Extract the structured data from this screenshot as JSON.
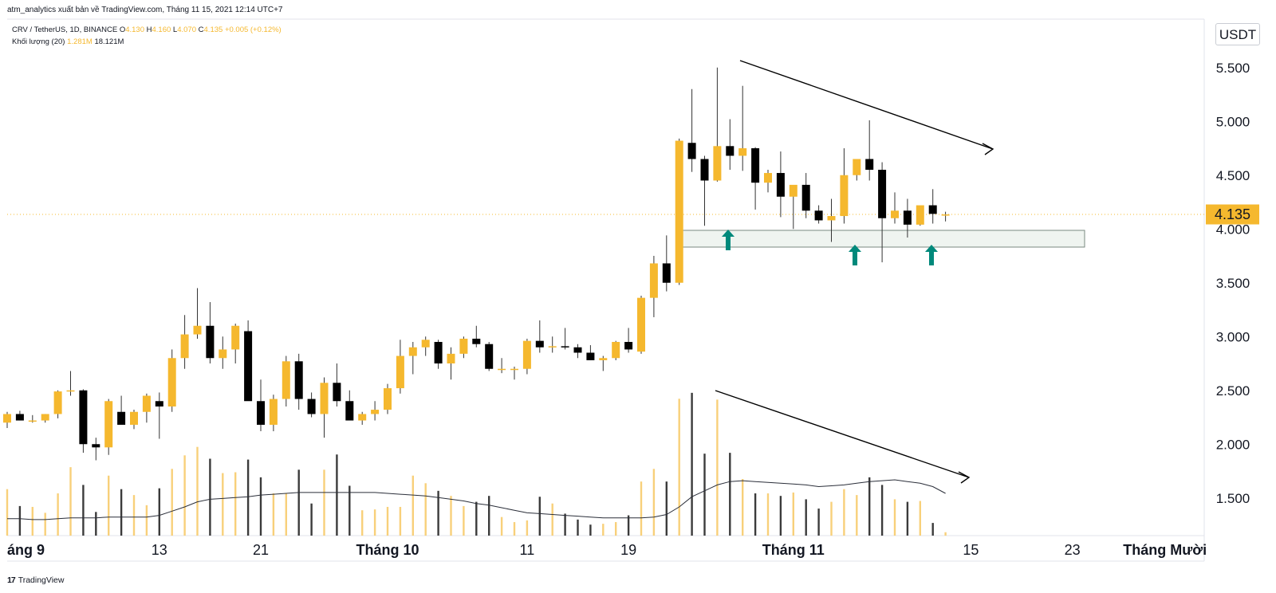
{
  "header": {
    "publisher": "atm_analytics xuất bản về TradingView.com, Tháng 11 15, 2021 12:14 UTC+7"
  },
  "legend": {
    "symbol": "CRV / TetherUS, 1D, BINANCE",
    "o_label": "O",
    "o_value": "4.130",
    "h_label": "H",
    "h_value": "4.160",
    "l_label": "L",
    "l_value": "4.070",
    "c_label": "C",
    "c_value": "4.135",
    "change": "+0.005 (+0.12%)",
    "volume_label": "Khối lượng (20)",
    "volume_value": "1.281M",
    "volume_ma": "18.121M"
  },
  "currency": "USDT",
  "footer": {
    "logo": "17",
    "brand": "TradingView"
  },
  "colors": {
    "up": "#f5b82e",
    "down": "#000000",
    "volume_up": "#f8d07a",
    "volume_down": "#3b3b3b",
    "signal": "#00897b",
    "price_line": "#f5b82e"
  },
  "chart_data": {
    "type": "candlestick",
    "title": "CRV / TetherUS, 1D, BINANCE",
    "last_price": "4.135",
    "last_price_value": 4.135,
    "ylim": [
      1.15,
      5.95
    ],
    "y_ticks": [
      {
        "value": 5.5,
        "label": "5.500"
      },
      {
        "value": 5.0,
        "label": "5.000"
      },
      {
        "value": 4.5,
        "label": "4.500"
      },
      {
        "value": 4.0,
        "label": "4.000"
      },
      {
        "value": 3.5,
        "label": "3.500"
      },
      {
        "value": 3.0,
        "label": "3.000"
      },
      {
        "value": 2.5,
        "label": "2.500"
      },
      {
        "value": 2.0,
        "label": "2.000"
      },
      {
        "value": 1.5,
        "label": "1.500"
      }
    ],
    "x_ticks": [
      {
        "index": -0.4,
        "label": "áng 9",
        "bold": true
      },
      {
        "index": 12,
        "label": "13",
        "bold": false
      },
      {
        "index": 20,
        "label": "21",
        "bold": false
      },
      {
        "index": 30,
        "label": "Tháng 10",
        "bold": true
      },
      {
        "index": 41,
        "label": "11",
        "bold": false
      },
      {
        "index": 49,
        "label": "19",
        "bold": false
      },
      {
        "index": 62,
        "label": "Tháng 11",
        "bold": true
      },
      {
        "index": 76,
        "label": "15",
        "bold": false
      },
      {
        "index": 84,
        "label": "23",
        "bold": false
      },
      {
        "index": 91.3,
        "label": "Tháng Mười",
        "bold": true
      }
    ],
    "candles": [
      [
        2.2,
        2.15,
        2.3,
        2.28
      ],
      [
        2.28,
        2.22,
        2.31,
        2.22
      ],
      [
        2.22,
        2.2,
        2.27,
        2.22
      ],
      [
        2.22,
        2.2,
        2.28,
        2.28
      ],
      [
        2.28,
        2.24,
        2.5,
        2.49
      ],
      [
        2.49,
        2.45,
        2.68,
        2.5
      ],
      [
        2.5,
        1.92,
        2.51,
        2.0
      ],
      [
        2.0,
        1.85,
        2.06,
        1.97
      ],
      [
        1.97,
        1.9,
        2.42,
        2.4
      ],
      [
        2.3,
        2.2,
        2.45,
        2.18
      ],
      [
        2.18,
        2.14,
        2.32,
        2.3
      ],
      [
        2.3,
        2.2,
        2.47,
        2.45
      ],
      [
        2.4,
        2.05,
        2.48,
        2.35
      ],
      [
        2.35,
        2.3,
        2.88,
        2.8
      ],
      [
        2.8,
        2.7,
        3.2,
        3.02
      ],
      [
        3.02,
        2.98,
        3.45,
        3.1
      ],
      [
        3.1,
        2.75,
        3.32,
        2.8
      ],
      [
        2.8,
        2.7,
        3.0,
        2.88
      ],
      [
        2.88,
        2.75,
        3.12,
        3.1
      ],
      [
        3.05,
        2.9,
        3.15,
        2.4
      ],
      [
        2.4,
        2.12,
        2.6,
        2.18
      ],
      [
        2.18,
        2.12,
        2.46,
        2.42
      ],
      [
        2.42,
        2.35,
        2.82,
        2.77
      ],
      [
        2.77,
        2.32,
        2.84,
        2.42
      ],
      [
        2.42,
        2.25,
        2.48,
        2.28
      ],
      [
        2.28,
        2.06,
        2.62,
        2.57
      ],
      [
        2.57,
        2.35,
        2.75,
        2.4
      ],
      [
        2.4,
        2.3,
        2.5,
        2.22
      ],
      [
        2.22,
        2.18,
        2.3,
        2.28
      ],
      [
        2.28,
        2.22,
        2.4,
        2.32
      ],
      [
        2.32,
        2.28,
        2.56,
        2.52
      ],
      [
        2.52,
        2.47,
        2.97,
        2.82
      ],
      [
        2.82,
        2.65,
        2.95,
        2.9
      ],
      [
        2.9,
        2.82,
        3.0,
        2.97
      ],
      [
        2.95,
        2.7,
        2.97,
        2.75
      ],
      [
        2.75,
        2.6,
        2.9,
        2.84
      ],
      [
        2.84,
        2.8,
        3.0,
        2.98
      ],
      [
        2.98,
        2.9,
        3.1,
        2.93
      ],
      [
        2.93,
        2.68,
        2.95,
        2.7
      ],
      [
        2.7,
        2.66,
        2.8,
        2.7
      ],
      [
        2.7,
        2.6,
        2.72,
        2.7
      ],
      [
        2.7,
        2.65,
        2.98,
        2.96
      ],
      [
        2.96,
        2.85,
        3.15,
        2.9
      ],
      [
        2.9,
        2.85,
        3.0,
        2.91
      ],
      [
        2.91,
        2.88,
        3.08,
        2.9
      ],
      [
        2.9,
        2.8,
        2.93,
        2.85
      ],
      [
        2.85,
        2.78,
        2.92,
        2.78
      ],
      [
        2.78,
        2.68,
        2.82,
        2.8
      ],
      [
        2.8,
        2.78,
        2.96,
        2.95
      ],
      [
        2.95,
        2.85,
        3.08,
        2.88
      ],
      [
        2.86,
        2.84,
        3.38,
        3.36
      ],
      [
        3.36,
        3.18,
        3.75,
        3.68
      ],
      [
        3.68,
        3.42,
        3.94,
        3.5
      ],
      [
        3.5,
        3.48,
        4.84,
        4.82
      ],
      [
        4.8,
        4.53,
        5.3,
        4.65
      ],
      [
        4.65,
        4.03,
        4.68,
        4.45
      ],
      [
        4.45,
        4.44,
        5.5,
        4.77
      ],
      [
        4.77,
        4.55,
        5.02,
        4.68
      ],
      [
        4.68,
        4.54,
        5.33,
        4.75
      ],
      [
        4.75,
        4.18,
        4.76,
        4.43
      ],
      [
        4.43,
        4.34,
        4.55,
        4.52
      ],
      [
        4.52,
        4.11,
        4.72,
        4.3
      ],
      [
        4.3,
        4.0,
        4.4,
        4.41
      ],
      [
        4.41,
        4.1,
        4.52,
        4.17
      ],
      [
        4.17,
        4.05,
        4.22,
        4.08
      ],
      [
        4.08,
        3.88,
        4.28,
        4.12
      ],
      [
        4.12,
        4.05,
        4.75,
        4.5
      ],
      [
        4.5,
        4.45,
        4.65,
        4.65
      ],
      [
        4.65,
        4.45,
        5.01,
        4.55
      ],
      [
        4.55,
        3.69,
        4.62,
        4.1
      ],
      [
        4.1,
        4.05,
        4.34,
        4.17
      ],
      [
        4.17,
        3.92,
        4.28,
        4.04
      ],
      [
        4.04,
        4.03,
        4.21,
        4.22
      ],
      [
        4.22,
        4.05,
        4.37,
        4.14
      ],
      [
        4.13,
        4.07,
        4.16,
        4.135
      ]
    ],
    "volume": [
      55,
      35,
      34,
      27,
      50,
      81,
      60,
      28,
      71,
      55,
      48,
      36,
      56,
      79,
      95,
      105,
      91,
      74,
      75,
      90,
      69,
      50,
      50,
      78,
      38,
      78,
      96,
      59,
      30,
      31,
      34,
      34,
      71,
      62,
      53,
      47,
      35,
      40,
      47,
      22,
      16,
      18,
      46,
      38,
      26,
      19,
      13,
      14,
      16,
      24,
      64,
      79,
      64,
      162,
      169,
      97,
      161,
      98,
      67,
      50,
      50,
      47,
      51,
      43,
      32,
      40,
      55,
      48,
      69,
      60,
      43,
      40,
      41,
      15,
      4
    ],
    "volume_unit": "relative",
    "volume_ma": [
      20,
      20,
      19,
      19,
      20,
      21,
      21,
      21,
      22,
      22,
      22,
      22,
      24,
      29,
      34,
      40,
      43,
      44,
      45,
      46,
      48,
      49,
      50,
      51,
      51,
      51,
      51,
      51,
      51,
      51,
      50,
      49,
      48,
      47,
      45,
      43,
      41,
      38,
      36,
      33,
      30,
      27,
      26,
      25,
      24,
      23,
      22,
      21,
      21,
      21,
      21,
      22,
      25,
      34,
      46,
      53,
      60,
      64,
      65,
      64,
      63,
      62,
      61,
      60,
      58,
      59,
      60,
      62,
      64,
      65,
      66,
      64,
      62,
      58,
      50
    ]
  }
}
